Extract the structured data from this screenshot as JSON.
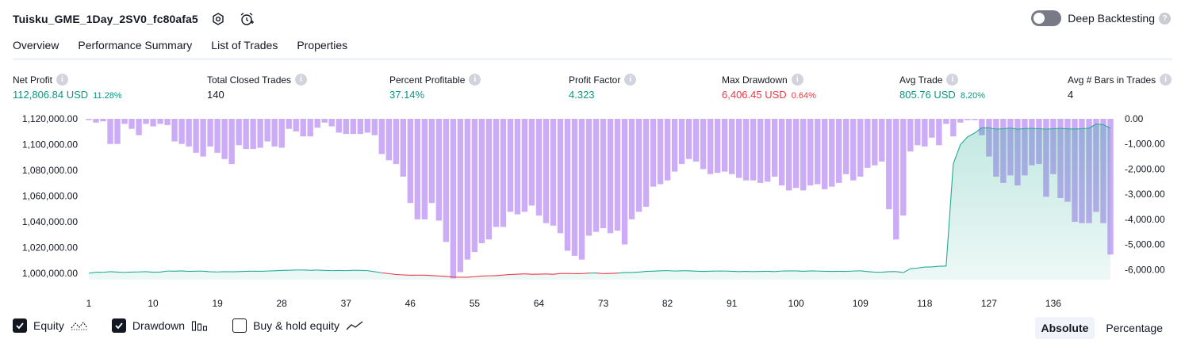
{
  "header": {
    "title": "Tuisku_GME_1Day_2SV0_fc80afa5",
    "icons": [
      "settings-icon",
      "alarm-add-icon"
    ]
  },
  "deep_backtesting": {
    "label": "Deep Backtesting",
    "enabled": false,
    "help": "?"
  },
  "tabs": [
    {
      "label": "Overview",
      "active": true
    },
    {
      "label": "Performance Summary",
      "active": false
    },
    {
      "label": "List of Trades",
      "active": false
    },
    {
      "label": "Properties",
      "active": false
    }
  ],
  "metrics": [
    {
      "label": "Net Profit",
      "value": "112,806.84 USD",
      "pct": "11.28%",
      "color": "pos"
    },
    {
      "label": "Total Closed Trades",
      "value": "140",
      "pct": "",
      "color": "neu"
    },
    {
      "label": "Percent Profitable",
      "value": "37.14%",
      "pct": "",
      "color": "pos"
    },
    {
      "label": "Profit Factor",
      "value": "4.323",
      "pct": "",
      "color": "pos"
    },
    {
      "label": "Max Drawdown",
      "value": "6,406.45 USD",
      "pct": "0.64%",
      "color": "neg"
    },
    {
      "label": "Avg Trade",
      "value": "805.76 USD",
      "pct": "8.20%",
      "color": "pos"
    },
    {
      "label": "Avg # Bars in Trades",
      "value": "4",
      "pct": "",
      "color": "neu"
    }
  ],
  "chart_data": {
    "type": "bar+area",
    "x_ticks": [
      "1",
      "10",
      "19",
      "28",
      "37",
      "46",
      "55",
      "64",
      "73",
      "82",
      "91",
      "100",
      "109",
      "118",
      "127",
      "136"
    ],
    "left_axis": {
      "ticks": [
        "1,120,000.00",
        "1,100,000.00",
        "1,080,000.00",
        "1,060,000.00",
        "1,040,000.00",
        "1,020,000.00",
        "1,000,000.00"
      ],
      "range": [
        995000,
        1120000
      ]
    },
    "right_axis": {
      "ticks": [
        "0.00",
        "-1,000.00",
        "-2,000.00",
        "-3,000.00",
        "-4,000.00",
        "-5,000.00",
        "-6,000.00"
      ],
      "range": [
        -6400,
        0
      ]
    },
    "series": [
      {
        "name": "Drawdown",
        "color": "#c9a8f5",
        "values": [
          -50,
          -150,
          -100,
          -1000,
          -1000,
          -200,
          -400,
          -650,
          -200,
          -300,
          -200,
          -250,
          -900,
          -1000,
          -1100,
          -1350,
          -1500,
          -1100,
          -1350,
          -1600,
          -1800,
          -1050,
          -1200,
          -1200,
          -1150,
          -900,
          -1100,
          -1150,
          -400,
          -500,
          -700,
          -700,
          -350,
          -150,
          -300,
          -550,
          -600,
          -600,
          -600,
          -550,
          -650,
          -1400,
          -1650,
          -1800,
          -2300,
          -3350,
          -4000,
          -4000,
          -3350,
          -4050,
          -4900,
          -6350,
          -6100,
          -5600,
          -5300,
          -4950,
          -4800,
          -4300,
          -4300,
          -3700,
          -3800,
          -3700,
          -3450,
          -3850,
          -4150,
          -4250,
          -4550,
          -5250,
          -5450,
          -5600,
          -4650,
          -4500,
          -4350,
          -4550,
          -4450,
          -5000,
          -4000,
          -3700,
          -3500,
          -2700,
          -2600,
          -2450,
          -2100,
          -1800,
          -1600,
          -1700,
          -2000,
          -2200,
          -2150,
          -2100,
          -2200,
          -2350,
          -2450,
          -2450,
          -2550,
          -2500,
          -2300,
          -2650,
          -2850,
          -2750,
          -2850,
          -2650,
          -2600,
          -2800,
          -2700,
          -2550,
          -2200,
          -2450,
          -2300,
          -1950,
          -1850,
          -1700,
          -3600,
          -4800,
          -3850,
          -1300,
          -1050,
          -1100,
          -750,
          -1050,
          -200,
          -700,
          -150,
          -50,
          -50,
          -650,
          -1500,
          -2300,
          -2550,
          -2250,
          -2650,
          -2250,
          -1850,
          -1800,
          -3100,
          -2200,
          -3150,
          -3300,
          -4100,
          -4150,
          -4150,
          -3700,
          -4150,
          -5400
        ]
      },
      {
        "name": "Equity",
        "color": "#22ab94",
        "values": [
          1000000,
          1000800,
          1000700,
          1001200,
          1000900,
          1000700,
          1000900,
          1001000,
          1001200,
          1000800,
          1000900,
          1001700,
          1001600,
          1001800,
          1001400,
          1001600,
          1001600,
          1001100,
          1001000,
          1001200,
          1001100,
          1001300,
          1001500,
          1001600,
          1001500,
          1001700,
          1001900,
          1002200,
          1002300,
          1002500,
          1002500,
          1002300,
          1002400,
          1002200,
          1002000,
          1002100,
          1002000,
          1002300,
          1002200,
          1002000,
          1001200,
          1000300,
          999700,
          999000,
          998700,
          998400,
          998500,
          998500,
          998200,
          997800,
          997600,
          997000,
          996900,
          996900,
          997300,
          997800,
          998000,
          998100,
          998600,
          999000,
          999300,
          999500,
          999200,
          999300,
          999400,
          999200,
          999800,
          999800,
          999700,
          999700,
          1000100,
          1000200,
          999700,
          999800,
          1000100,
          1000500,
          1000600,
          1000900,
          1001400,
          1001600,
          1001900,
          1002000,
          1001700,
          1001900,
          1001900,
          1001600,
          1001400,
          1001600,
          1001700,
          1001700,
          1001500,
          1001300,
          1001400,
          1001300,
          1001400,
          1001500,
          1001300,
          1001700,
          1001800,
          1001800,
          1001500,
          1001800,
          1001700,
          1001500,
          1001400,
          1001500,
          1001400,
          1001700,
          1001900,
          1001300,
          1000800,
          1000800,
          1001200,
          1001300,
          1000500,
          1003500,
          1004000,
          1004800,
          1004900,
          1005400,
          1005500,
          1085000,
          1100000,
          1106000,
          1109000,
          1113000,
          1113000,
          1112000,
          1112300,
          1112800,
          1112000,
          1112400,
          1112600,
          1112300,
          1112000,
          1112300,
          1112600,
          1112200,
          1112100,
          1112300,
          1112700,
          1116000,
          1115500,
          1112800
        ]
      }
    ]
  },
  "footer": {
    "checkboxes": [
      {
        "label": "Equity",
        "checked": true,
        "legend_icon": "equity-legend-icon"
      },
      {
        "label": "Drawdown",
        "checked": true,
        "legend_icon": "drawdown-legend-icon"
      },
      {
        "label": "Buy & hold equity",
        "checked": false,
        "legend_icon": "buy-hold-legend-icon"
      }
    ],
    "modes": [
      {
        "label": "Absolute",
        "active": true
      },
      {
        "label": "Percentage",
        "active": false
      }
    ]
  }
}
